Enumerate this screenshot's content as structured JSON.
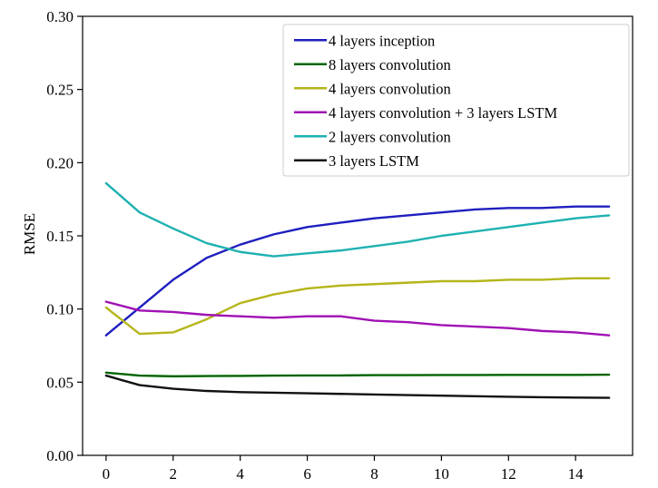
{
  "chart_data": {
    "type": "line",
    "title": "",
    "xlabel": "",
    "ylabel": "RMSE",
    "xlim": [
      -0.7,
      15.7
    ],
    "ylim": [
      0.0,
      0.3
    ],
    "x_ticks": [
      0,
      2,
      4,
      6,
      8,
      10,
      12,
      14
    ],
    "y_ticks": [
      "0.00",
      "0.05",
      "0.10",
      "0.15",
      "0.20",
      "0.25",
      "0.30"
    ],
    "x_tick_labels": [
      "0",
      "2",
      "4",
      "6",
      "8",
      "10",
      "12",
      "14"
    ],
    "grid": false,
    "legend_position": "top-right",
    "x": [
      0,
      1,
      2,
      3,
      4,
      5,
      6,
      7,
      8,
      9,
      10,
      11,
      12,
      13,
      14,
      15
    ],
    "series": [
      {
        "name": "4 layers inception",
        "color": "#1f1fbf",
        "values": [
          0.082,
          0.101,
          0.12,
          0.135,
          0.144,
          0.151,
          0.156,
          0.159,
          0.162,
          0.164,
          0.166,
          0.168,
          0.169,
          0.169,
          0.17,
          0.17
        ]
      },
      {
        "name": "8 layers convolution",
        "color": "#006400",
        "values": [
          0.0565,
          0.0545,
          0.054,
          0.0542,
          0.0543,
          0.0545,
          0.0546,
          0.0546,
          0.0548,
          0.0548,
          0.0549,
          0.0549,
          0.055,
          0.055,
          0.055,
          0.0551
        ]
      },
      {
        "name": "4 layers convolution",
        "color": "#b5b51a",
        "values": [
          0.101,
          0.083,
          0.084,
          0.093,
          0.104,
          0.11,
          0.114,
          0.116,
          0.117,
          0.118,
          0.119,
          0.119,
          0.12,
          0.12,
          0.121,
          0.121
        ]
      },
      {
        "name": "4 layers convolution + 3 layers LSTM",
        "color": "#a010b4",
        "values": [
          0.105,
          0.099,
          0.098,
          0.096,
          0.095,
          0.094,
          0.095,
          0.095,
          0.092,
          0.091,
          0.089,
          0.088,
          0.087,
          0.085,
          0.084,
          0.082
        ]
      },
      {
        "name": "2 layers convolution",
        "color": "#1fb1b1",
        "values": [
          0.186,
          0.166,
          0.155,
          0.145,
          0.139,
          0.136,
          0.138,
          0.14,
          0.143,
          0.146,
          0.15,
          0.153,
          0.156,
          0.159,
          0.162,
          0.164
        ]
      },
      {
        "name": "3 layers LSTM",
        "color": "#111111",
        "values": [
          0.0545,
          0.048,
          0.0455,
          0.044,
          0.0432,
          0.0428,
          0.0424,
          0.042,
          0.0416,
          0.0412,
          0.0408,
          0.0404,
          0.04,
          0.0397,
          0.0395,
          0.0393
        ]
      }
    ]
  }
}
